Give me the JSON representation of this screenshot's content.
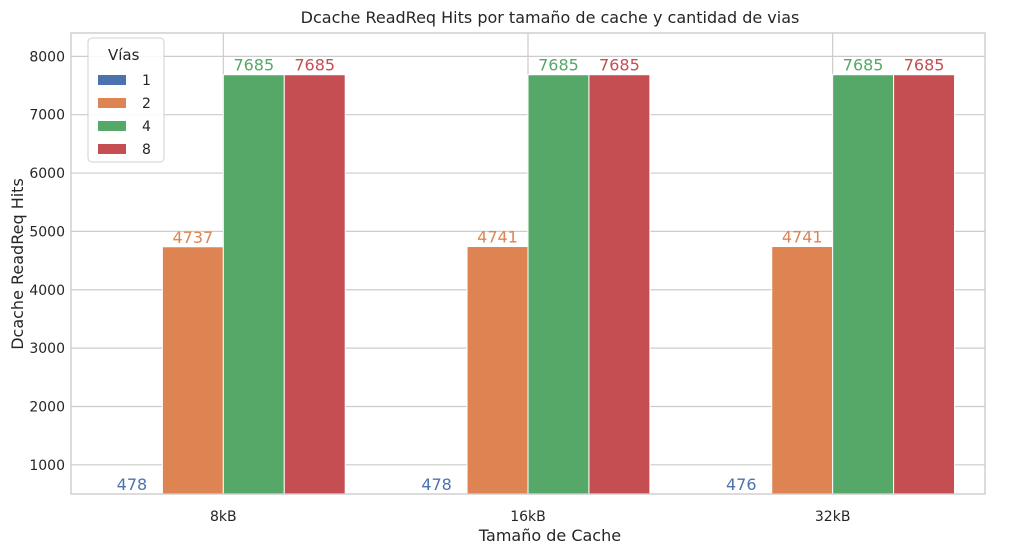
{
  "chart_data": {
    "type": "bar",
    "title": "Dcache ReadReq Hits por tamaño de cache y cantidad de vias",
    "xlabel": "Tamaño de Cache",
    "ylabel": "Dcache ReadReq Hits",
    "categories": [
      "8kB",
      "16kB",
      "32kB"
    ],
    "ylim": [
      500,
      8400
    ],
    "yticks": [
      1000,
      2000,
      3000,
      4000,
      5000,
      6000,
      7000,
      8000
    ],
    "grid": true,
    "legend": {
      "title": "Vías",
      "position": "top-left"
    },
    "series": [
      {
        "name": "1",
        "color": "#4c72b0",
        "values": [
          478,
          478,
          476
        ]
      },
      {
        "name": "2",
        "color": "#dd8452",
        "values": [
          4737,
          4741,
          4741
        ]
      },
      {
        "name": "4",
        "color": "#55a868",
        "values": [
          7685,
          7685,
          7685
        ]
      },
      {
        "name": "8",
        "color": "#c44e52",
        "values": [
          7685,
          7685,
          7685
        ]
      }
    ]
  }
}
